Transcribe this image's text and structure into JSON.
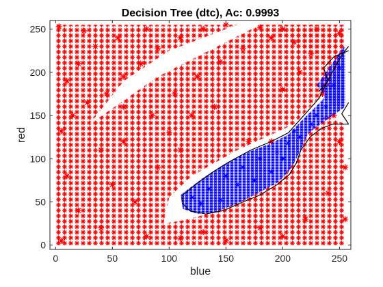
{
  "chart_data": {
    "type": "scatter",
    "title": "Decision Tree (dtc), Ac: 0.9993",
    "xlabel": "blue",
    "ylabel": "red",
    "xlim": [
      -5,
      260
    ],
    "ylim": [
      -5,
      260
    ],
    "xticks": [
      0,
      50,
      100,
      150,
      200,
      250
    ],
    "yticks": [
      0,
      50,
      100,
      150,
      200,
      250
    ],
    "grid": false,
    "legend": "none",
    "marker": "*",
    "series": [
      {
        "color": "#ff0000",
        "regions": [
          {
            "poly": [
              [
                0,
                0
              ],
              [
                255,
                0
              ],
              [
                255,
                140
              ],
              [
                238,
                150
              ],
              [
                222,
                130
              ],
              [
                213,
                100
              ],
              [
                195,
                72
              ],
              [
                170,
                55
              ],
              [
                140,
                38
              ],
              [
                110,
                28
              ],
              [
                95,
                25
              ],
              [
                100,
                55
              ],
              [
                120,
                80
              ],
              [
                160,
                110
              ],
              [
                210,
                140
              ],
              [
                240,
                182
              ],
              [
                255,
                230
              ],
              [
                255,
                255
              ],
              [
                180,
                255
              ],
              [
                90,
                195
              ],
              [
                30,
                140
              ],
              [
                0,
                130
              ]
            ]
          },
          {
            "poly": [
              [
                0,
                130
              ],
              [
                30,
                140
              ],
              [
                60,
                190
              ],
              [
                100,
                225
              ],
              [
                160,
                255
              ],
              [
                0,
                255
              ]
            ]
          },
          {
            "poly": [
              [
                180,
                255
              ],
              [
                255,
                255
              ],
              [
                255,
                232
              ],
              [
                240,
                212
              ]
            ]
          }
        ],
        "points": [
          [
            5,
            132
          ],
          [
            15,
            150
          ],
          [
            28,
            165
          ],
          [
            45,
            175
          ],
          [
            60,
            195
          ],
          [
            75,
            210
          ],
          [
            90,
            228
          ],
          [
            110,
            240
          ],
          [
            130,
            250
          ],
          [
            150,
            255
          ],
          [
            180,
            252
          ],
          [
            200,
            250
          ],
          [
            230,
            250
          ],
          [
            250,
            245
          ],
          [
            35,
            230
          ],
          [
            20,
            210
          ],
          [
            10,
            190
          ],
          [
            55,
            240
          ],
          [
            80,
            250
          ],
          [
            25,
            248
          ],
          [
            60,
            120
          ],
          [
            85,
            150
          ],
          [
            105,
            175
          ],
          [
            125,
            195
          ],
          [
            145,
            212
          ],
          [
            165,
            228
          ],
          [
            190,
            240
          ],
          [
            210,
            235
          ],
          [
            225,
            222
          ],
          [
            170,
            120
          ],
          [
            190,
            120
          ],
          [
            240,
            60
          ],
          [
            220,
            30
          ],
          [
            180,
            20
          ],
          [
            130,
            15
          ],
          [
            80,
            10
          ],
          [
            40,
            20
          ],
          [
            20,
            40
          ],
          [
            10,
            80
          ],
          [
            50,
            70
          ],
          [
            70,
            50
          ],
          [
            90,
            90
          ],
          [
            110,
            110
          ],
          [
            60,
            160
          ],
          [
            40,
            110
          ],
          [
            200,
            180
          ],
          [
            215,
            200
          ],
          [
            235,
            175
          ],
          [
            245,
            150
          ],
          [
            250,
            120
          ],
          [
            3,
            253
          ],
          [
            110,
            8
          ],
          [
            150,
            5
          ],
          [
            200,
            10
          ],
          [
            255,
            30
          ],
          [
            255,
            90
          ],
          [
            5,
            5
          ],
          [
            100,
            130
          ],
          [
            120,
            150
          ],
          [
            140,
            160
          ]
        ]
      },
      {
        "color": "#0000ff",
        "regions": [
          {
            "poly": [
              [
                112,
                42
              ],
              [
                110,
                58
              ],
              [
                130,
                78
              ],
              [
                150,
                95
              ],
              [
                170,
                108
              ],
              [
                190,
                118
              ],
              [
                205,
                128
              ],
              [
                215,
                142
              ],
              [
                225,
                155
              ],
              [
                235,
                168
              ],
              [
                240,
                182
              ],
              [
                250,
                212
              ],
              [
                255,
                228
              ],
              [
                255,
                160
              ],
              [
                242,
                148
              ],
              [
                228,
                135
              ],
              [
                222,
                128
              ],
              [
                215,
                108
              ],
              [
                210,
                95
              ],
              [
                205,
                85
              ],
              [
                195,
                72
              ],
              [
                178,
                60
              ],
              [
                160,
                48
              ],
              [
                140,
                38
              ],
              [
                125,
                36
              ]
            ]
          },
          {
            "poly": [
              [
                230,
                185
              ],
              [
                255,
                232
              ],
              [
                255,
                165
              ],
              [
                245,
                160
              ]
            ]
          }
        ],
        "points": [
          [
            120,
            55
          ],
          [
            135,
            65
          ],
          [
            150,
            80
          ],
          [
            165,
            90
          ],
          [
            180,
            100
          ],
          [
            195,
            108
          ],
          [
            205,
            118
          ],
          [
            215,
            125
          ],
          [
            225,
            140
          ],
          [
            238,
            160
          ],
          [
            245,
            185
          ],
          [
            250,
            205
          ],
          [
            160,
            70
          ],
          [
            175,
            75
          ],
          [
            190,
            85
          ],
          [
            200,
            100
          ],
          [
            145,
            52
          ],
          [
            128,
            48
          ],
          [
            210,
            132
          ],
          [
            230,
            150
          ]
        ]
      }
    ],
    "boundaries": [
      {
        "color": "#000000",
        "points": [
          [
            118,
            40
          ],
          [
            112,
            48
          ],
          [
            112,
            58
          ],
          [
            125,
            72
          ],
          [
            140,
            86
          ],
          [
            155,
            98
          ],
          [
            172,
            110
          ],
          [
            190,
            120
          ],
          [
            205,
            130
          ],
          [
            213,
            142
          ],
          [
            222,
            155
          ],
          [
            232,
            170
          ],
          [
            238,
            186
          ],
          [
            246,
            206
          ],
          [
            253,
            222
          ],
          [
            258,
            230
          ]
        ]
      },
      {
        "color": "#000000",
        "points": [
          [
            118,
            40
          ],
          [
            132,
            36
          ],
          [
            148,
            40
          ],
          [
            165,
            50
          ],
          [
            180,
            58
          ],
          [
            195,
            70
          ],
          [
            206,
            82
          ],
          [
            212,
            95
          ],
          [
            216,
            110
          ],
          [
            224,
            125
          ],
          [
            234,
            135
          ],
          [
            244,
            140
          ],
          [
            258,
            140
          ]
        ]
      },
      {
        "color": "#000000",
        "points": [
          [
            232,
            178
          ],
          [
            240,
            190
          ],
          [
            236,
            205
          ],
          [
            245,
            218
          ],
          [
            258,
            225
          ]
        ]
      },
      {
        "color": "#000000",
        "points": [
          [
            258,
            140
          ],
          [
            252,
            152
          ],
          [
            258,
            165
          ]
        ]
      }
    ]
  }
}
